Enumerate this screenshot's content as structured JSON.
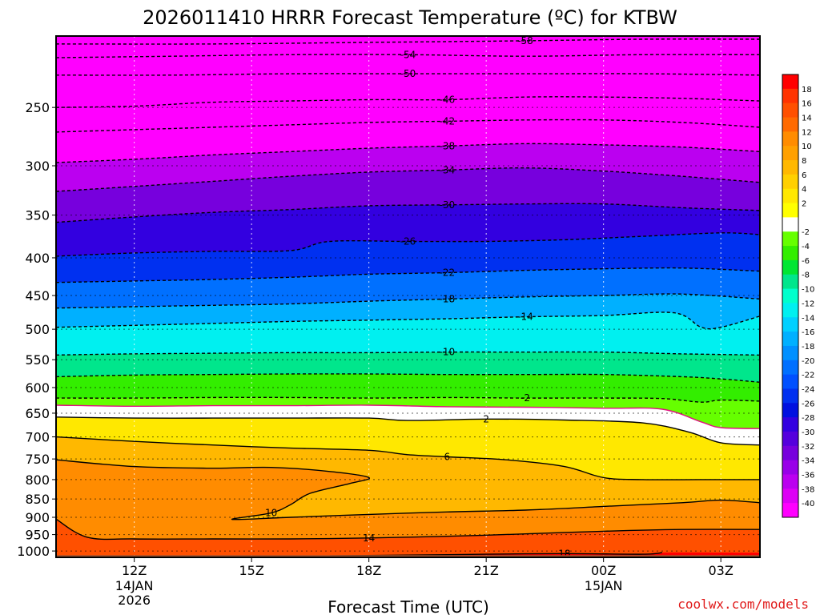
{
  "chart_data": {
    "type": "heatmap",
    "title": "2026011410 HRRR Forecast Temperature (ºC) for KTBW",
    "xlabel": "Forecast Time (UTC)",
    "ylabel": "",
    "credit": "coolwx.com/models",
    "x_range_hours": [
      10,
      28
    ],
    "x_ticks": [
      {
        "hour": 12,
        "label": "12Z",
        "sub": [
          "14JAN",
          "2026"
        ]
      },
      {
        "hour": 15,
        "label": "15Z",
        "sub": []
      },
      {
        "hour": 18,
        "label": "18Z",
        "sub": []
      },
      {
        "hour": 21,
        "label": "21Z",
        "sub": []
      },
      {
        "hour": 24,
        "label": "00Z",
        "sub": [
          "15JAN"
        ]
      },
      {
        "hour": 27,
        "label": "03Z",
        "sub": []
      }
    ],
    "y_axis": "pressure (hPa), log scale, inverted",
    "y_range": [
      1020,
      200
    ],
    "y_ticks": [
      250,
      300,
      350,
      400,
      450,
      500,
      550,
      600,
      650,
      700,
      750,
      800,
      850,
      900,
      950,
      1000
    ],
    "colorbar": [
      18,
      16,
      14,
      12,
      10,
      8,
      6,
      4,
      2,
      -2,
      -4,
      -6,
      -8,
      -10,
      -12,
      -14,
      -16,
      -18,
      -20,
      -22,
      -24,
      -26,
      -28,
      -30,
      -32,
      -34,
      -36,
      -38,
      -40
    ],
    "colorbar_colors": [
      "#ff0000",
      "#ff3300",
      "#ff5000",
      "#ff6a00",
      "#ff8c00",
      "#ffa000",
      "#ffb800",
      "#ffd000",
      "#ffe800",
      "#ffff00",
      "#ffffff",
      "#66ff00",
      "#33ee00",
      "#00e633",
      "#00e68c",
      "#00ffcc",
      "#00f0f0",
      "#00d0ff",
      "#00b0ff",
      "#0090ff",
      "#0070ff",
      "#0050ff",
      "#0030f0",
      "#0010e0",
      "#3300e0",
      "#5500dd",
      "#7700dd",
      "#9900e8",
      "#bb00f0",
      "#dd00f5",
      "#ff00ff"
    ],
    "ground_color": "#a0522d",
    "isotherms": [
      {
        "value": -58,
        "label": "-58",
        "points": [
          [
            10,
            205
          ],
          [
            14,
            205
          ],
          [
            18,
            204
          ],
          [
            22,
            203
          ],
          [
            25,
            202
          ],
          [
            28,
            202
          ]
        ]
      },
      {
        "value": -54,
        "label": "-54",
        "points": [
          [
            10,
            214
          ],
          [
            13,
            213
          ],
          [
            16,
            212
          ],
          [
            19,
            212
          ],
          [
            22,
            213
          ],
          [
            25,
            212
          ],
          [
            28,
            212
          ]
        ]
      },
      {
        "value": -50,
        "label": "-50",
        "points": [
          [
            10,
            226
          ],
          [
            13,
            226
          ],
          [
            16,
            225
          ],
          [
            19,
            225
          ],
          [
            22,
            225
          ],
          [
            25,
            225
          ],
          [
            28,
            226
          ]
        ]
      },
      {
        "value": -46,
        "label": "-46",
        "points": [
          [
            10,
            250
          ],
          [
            12,
            249
          ],
          [
            14,
            246
          ],
          [
            16,
            245
          ],
          [
            18,
            244
          ],
          [
            20,
            244
          ],
          [
            22,
            242
          ],
          [
            24,
            242
          ],
          [
            26,
            243
          ],
          [
            28,
            245
          ]
        ]
      },
      {
        "value": -42,
        "label": "-42",
        "points": [
          [
            10,
            270
          ],
          [
            12,
            268
          ],
          [
            14,
            266
          ],
          [
            16,
            264
          ],
          [
            18,
            262
          ],
          [
            20,
            261
          ],
          [
            22,
            260
          ],
          [
            24,
            260
          ],
          [
            26,
            262
          ],
          [
            28,
            266
          ]
        ]
      },
      {
        "value": -38,
        "label": "-38",
        "points": [
          [
            10,
            297
          ],
          [
            12,
            294
          ],
          [
            14,
            290
          ],
          [
            16,
            287
          ],
          [
            18,
            284
          ],
          [
            20,
            282
          ],
          [
            22,
            280
          ],
          [
            24,
            281
          ],
          [
            26,
            283
          ],
          [
            28,
            287
          ]
        ]
      },
      {
        "value": -34,
        "label": "-34",
        "points": [
          [
            10,
            325
          ],
          [
            12,
            320
          ],
          [
            14,
            315
          ],
          [
            16,
            310
          ],
          [
            18,
            306
          ],
          [
            20,
            304
          ],
          [
            22,
            302
          ],
          [
            24,
            305
          ],
          [
            26,
            310
          ],
          [
            28,
            316
          ]
        ]
      },
      {
        "value": -30,
        "label": "-30",
        "points": [
          [
            10,
            358
          ],
          [
            12,
            352
          ],
          [
            14,
            347
          ],
          [
            16,
            344
          ],
          [
            18,
            340
          ],
          [
            20,
            339
          ],
          [
            22,
            338
          ],
          [
            24,
            338
          ],
          [
            26,
            342
          ],
          [
            28,
            345
          ]
        ]
      },
      {
        "value": -26,
        "label": "-26",
        "points": [
          [
            10,
            398
          ],
          [
            12,
            394
          ],
          [
            14,
            392
          ],
          [
            16,
            391
          ],
          [
            17,
            380
          ],
          [
            19,
            380
          ],
          [
            21,
            380
          ],
          [
            23,
            378
          ],
          [
            25,
            374
          ],
          [
            27,
            370
          ],
          [
            28,
            372
          ]
        ]
      },
      {
        "value": -22,
        "label": "-22",
        "points": [
          [
            10,
            432
          ],
          [
            12,
            430
          ],
          [
            14,
            428
          ],
          [
            16,
            425
          ],
          [
            18,
            421
          ],
          [
            20,
            419
          ],
          [
            22,
            416
          ],
          [
            24,
            414
          ],
          [
            26,
            413
          ],
          [
            28,
            417
          ]
        ]
      },
      {
        "value": -18,
        "label": "-18",
        "points": [
          [
            10,
            468
          ],
          [
            12,
            466
          ],
          [
            14,
            464
          ],
          [
            16,
            462
          ],
          [
            18,
            458
          ],
          [
            20,
            455
          ],
          [
            22,
            452
          ],
          [
            24,
            450
          ],
          [
            26,
            448
          ],
          [
            28,
            455
          ]
        ]
      },
      {
        "value": -14,
        "label": "-14",
        "points": [
          [
            10,
            497
          ],
          [
            12,
            494
          ],
          [
            14,
            491
          ],
          [
            16,
            488
          ],
          [
            18,
            486
          ],
          [
            20,
            484
          ],
          [
            22,
            481
          ],
          [
            24,
            479
          ],
          [
            25.8,
            475
          ],
          [
            26.5,
            497
          ],
          [
            27,
            497
          ],
          [
            28,
            480
          ]
        ]
      },
      {
        "value": -10,
        "label": "-10",
        "points": [
          [
            10,
            542
          ],
          [
            12,
            540
          ],
          [
            14,
            539
          ],
          [
            16,
            538
          ],
          [
            18,
            538
          ],
          [
            20,
            537
          ],
          [
            22,
            537
          ],
          [
            24,
            537
          ],
          [
            26,
            540
          ],
          [
            28,
            542
          ]
        ]
      },
      {
        "value": -6,
        "label": "",
        "points": [
          [
            10,
            580
          ],
          [
            12,
            577
          ],
          [
            14,
            576
          ],
          [
            16,
            575
          ],
          [
            18,
            575
          ],
          [
            20,
            576
          ],
          [
            22,
            576
          ],
          [
            24,
            576
          ],
          [
            26,
            580
          ],
          [
            27,
            584
          ],
          [
            28,
            590
          ]
        ]
      },
      {
        "value": -2,
        "label": "-2",
        "points": [
          [
            10,
            620
          ],
          [
            12,
            620
          ],
          [
            14,
            619
          ],
          [
            16,
            619
          ],
          [
            18,
            620
          ],
          [
            20,
            619
          ],
          [
            22,
            620
          ],
          [
            24,
            620
          ],
          [
            25.5,
            621
          ],
          [
            26.5,
            628
          ],
          [
            27,
            624
          ],
          [
            28,
            626
          ]
        ]
      },
      {
        "value": 0,
        "label": "",
        "freezing": true,
        "points": [
          [
            10,
            634
          ],
          [
            12,
            636
          ],
          [
            14,
            635
          ],
          [
            16,
            635
          ],
          [
            18,
            634
          ],
          [
            20,
            637
          ],
          [
            22,
            638
          ],
          [
            24,
            640
          ],
          [
            25.5,
            642
          ],
          [
            26.5,
            668
          ],
          [
            27,
            680
          ],
          [
            28,
            682
          ]
        ]
      },
      {
        "value": 2,
        "label": "2",
        "points": [
          [
            10,
            658
          ],
          [
            12,
            660
          ],
          [
            14,
            660
          ],
          [
            16,
            660
          ],
          [
            18,
            660
          ],
          [
            19,
            665
          ],
          [
            21,
            662
          ],
          [
            23,
            664
          ],
          [
            25,
            670
          ],
          [
            26.2,
            690
          ],
          [
            27,
            713
          ],
          [
            28,
            718
          ]
        ]
      },
      {
        "value": 6,
        "label": "6",
        "points": [
          [
            10,
            700
          ],
          [
            12,
            710
          ],
          [
            14,
            718
          ],
          [
            16,
            725
          ],
          [
            18,
            730
          ],
          [
            19,
            740
          ],
          [
            20,
            745
          ],
          [
            21.5,
            752
          ],
          [
            23,
            768
          ],
          [
            24,
            795
          ],
          [
            25,
            800
          ],
          [
            27,
            800
          ],
          [
            28,
            800
          ]
        ]
      },
      {
        "value": 10,
        "label": "10",
        "points": [
          [
            10,
            752
          ],
          [
            12,
            768
          ],
          [
            14,
            772
          ],
          [
            15.5,
            770
          ],
          [
            17,
            780
          ],
          [
            18,
            795
          ],
          [
            17.5,
            810
          ],
          [
            16.5,
            835
          ],
          [
            16,
            865
          ],
          [
            15.5,
            888
          ],
          [
            14.5,
            906
          ],
          [
            16,
            900
          ],
          [
            18,
            892
          ],
          [
            20,
            885
          ],
          [
            22,
            880
          ],
          [
            24,
            870
          ],
          [
            26,
            860
          ],
          [
            27,
            853
          ],
          [
            28,
            860
          ]
        ]
      },
      {
        "value": 14,
        "label": "14",
        "points": [
          [
            10,
            905
          ],
          [
            10.8,
            958
          ],
          [
            12,
            963
          ],
          [
            14,
            963
          ],
          [
            16,
            963
          ],
          [
            18,
            960
          ],
          [
            20,
            955
          ],
          [
            22,
            948
          ],
          [
            24,
            940
          ],
          [
            26,
            935
          ],
          [
            28,
            935
          ]
        ]
      },
      {
        "value": 18,
        "label": "18",
        "points": [
          [
            17,
            1015
          ],
          [
            19,
            1013
          ],
          [
            21,
            1010
          ],
          [
            23,
            1008
          ],
          [
            25,
            1010
          ],
          [
            25.5,
            1005
          ]
        ]
      }
    ]
  }
}
